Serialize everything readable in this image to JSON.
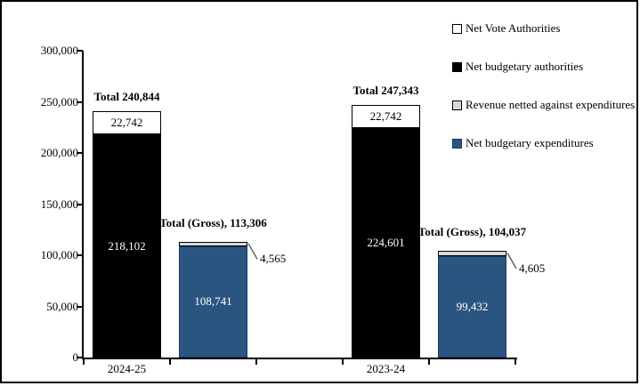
{
  "chart_data": {
    "type": "bar",
    "stacked": true,
    "title": "",
    "background": "#FFFFFF",
    "grid": false,
    "ylim": [
      0,
      300000
    ],
    "ytick_values": [
      0,
      50000,
      100000,
      150000,
      200000,
      250000,
      300000
    ],
    "ytick_labels": [
      "0",
      "50,000",
      "100,000",
      "150,000",
      "200,000",
      "250,000",
      "300,000"
    ],
    "categories": [
      "2024-25",
      "2023-24"
    ],
    "legend_position": "top-right",
    "legend": [
      {
        "label": "Net Vote Authorities",
        "color": "#FFFFFF",
        "border": "#000000"
      },
      {
        "label": "Net budgetary authorities",
        "color": "#000000",
        "border": "#000000"
      },
      {
        "label": "Revenue netted against expenditures",
        "color": "#D9D9D9",
        "border": "#000000"
      },
      {
        "label": "Net budgetary expenditures",
        "color": "#2A5581",
        "border": "#1F3864"
      }
    ],
    "bars": [
      {
        "axis_label": "2024-25",
        "total": 240844,
        "total_label": "Total 240,844",
        "segments": [
          {
            "series": "Net budgetary authorities",
            "value": 218102,
            "display": "218,102",
            "color": "#000000",
            "border": "#000000",
            "text_color": "#FFFFFF"
          },
          {
            "series": "Net Vote Authorities",
            "value": 22742,
            "display": "22,742",
            "color": "#FFFFFF",
            "border": "#000000",
            "text_color": "#000000"
          }
        ]
      },
      {
        "axis_label": "",
        "total": 113306,
        "total_label": "Total (Gross), 113,306",
        "segments": [
          {
            "series": "Net budgetary expenditures",
            "value": 108741,
            "display": "108,741",
            "color": "#2A5581",
            "border": "#1F3864",
            "text_color": "#FFFFFF"
          },
          {
            "series": "Revenue netted against expenditures",
            "value": 4565,
            "display": "4,565",
            "color": "#D9D9D9",
            "border": "#000000",
            "text_color": "#000000",
            "callout": true
          }
        ]
      },
      {
        "axis_label": "2023-24",
        "total": 247343,
        "total_label": "Total 247,343",
        "segments": [
          {
            "series": "Net budgetary authorities",
            "value": 224601,
            "display": "224,601",
            "color": "#000000",
            "border": "#000000",
            "text_color": "#FFFFFF"
          },
          {
            "series": "Net Vote Authorities",
            "value": 22742,
            "display": "22,742",
            "color": "#FFFFFF",
            "border": "#000000",
            "text_color": "#000000"
          }
        ]
      },
      {
        "axis_label": "",
        "total": 104037,
        "total_label": "Total (Gross), 104,037",
        "segments": [
          {
            "series": "Net budgetary expenditures",
            "value": 99432,
            "display": "99,432",
            "color": "#2A5581",
            "border": "#1F3864",
            "text_color": "#FFFFFF"
          },
          {
            "series": "Revenue netted against expenditures",
            "value": 4605,
            "display": "4,605",
            "color": "#D9D9D9",
            "border": "#000000",
            "text_color": "#000000",
            "callout": true
          }
        ]
      }
    ]
  }
}
